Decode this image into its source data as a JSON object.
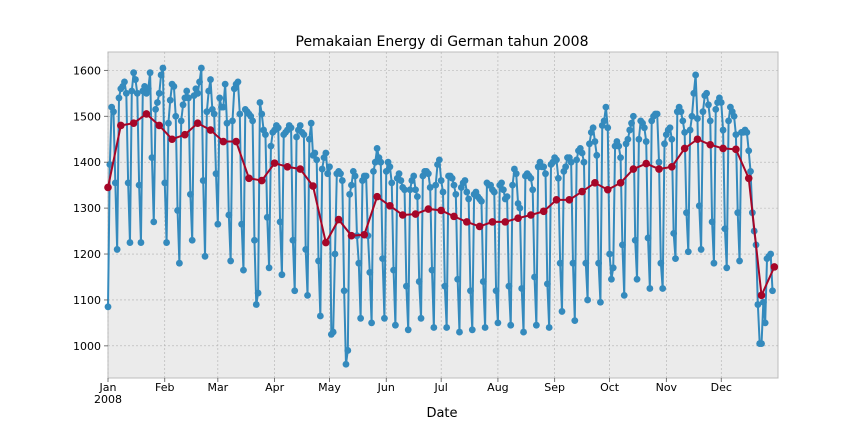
{
  "chart_data": {
    "type": "line",
    "title": "Pemakaian Energy di German tahun 2008",
    "xlabel": "Date",
    "ylabel": "",
    "ylim": [
      930,
      1640
    ],
    "xlim_days": [
      0,
      366
    ],
    "yticks": [
      1000,
      1100,
      1200,
      1300,
      1400,
      1500,
      1600
    ],
    "xticks": [
      {
        "day": 0,
        "label": "Jan",
        "sublabel": "2008"
      },
      {
        "day": 31,
        "label": "Feb"
      },
      {
        "day": 60,
        "label": "Mar"
      },
      {
        "day": 91,
        "label": "Apr"
      },
      {
        "day": 121,
        "label": "May"
      },
      {
        "day": 152,
        "label": "Jun"
      },
      {
        "day": 182,
        "label": "Jul"
      },
      {
        "day": 213,
        "label": "Aug"
      },
      {
        "day": 244,
        "label": "Sep"
      },
      {
        "day": 274,
        "label": "Oct"
      },
      {
        "day": 305,
        "label": "Nov"
      },
      {
        "day": 335,
        "label": "Dec"
      }
    ],
    "grid": true,
    "background": "#ebebeb",
    "series": [
      {
        "name": "",
        "color": "#348abd",
        "start_date": "2008-01-01",
        "values": [
          1085,
          1395,
          1520,
          1510,
          1355,
          1210,
          1540,
          1560,
          1565,
          1575,
          1550,
          1355,
          1225,
          1555,
          1595,
          1580,
          1550,
          1350,
          1225,
          1555,
          1565,
          1550,
          1560,
          1595,
          1410,
          1270,
          1515,
          1530,
          1550,
          1590,
          1605,
          1355,
          1225,
          1485,
          1535,
          1570,
          1565,
          1500,
          1295,
          1180,
          1490,
          1525,
          1540,
          1555,
          1540,
          1330,
          1230,
          1545,
          1560,
          1550,
          1575,
          1605,
          1360,
          1195,
          1510,
          1555,
          1580,
          1515,
          1505,
          1375,
          1265,
          1540,
          1520,
          1520,
          1570,
          1485,
          1285,
          1185,
          1490,
          1560,
          1570,
          1575,
          1505,
          1265,
          1165,
          1515,
          1510,
          1505,
          1500,
          1490,
          1230,
          1090,
          1115,
          1530,
          1505,
          1470,
          1460,
          1280,
          1170,
          1435,
          1465,
          1470,
          1480,
          1475,
          1270,
          1155,
          1460,
          1465,
          1470,
          1480,
          1475,
          1230,
          1120,
          1455,
          1470,
          1480,
          1465,
          1460,
          1210,
          1110,
          1450,
          1485,
          1415,
          1420,
          1405,
          1185,
          1065,
          1385,
          1410,
          1420,
          1375,
          1390,
          1025,
          1030,
          1200,
          1375,
          1380,
          1375,
          1360,
          1120,
          960,
          990,
          1330,
          1350,
          1380,
          1370,
          1240,
          1180,
          1060,
          1360,
          1370,
          1370,
          1240,
          1160,
          1050,
          1380,
          1400,
          1430,
          1410,
          1400,
          1190,
          1060,
          1380,
          1400,
          1390,
          1355,
          1165,
          1045,
          1365,
          1375,
          1360,
          1345,
          1340,
          1130,
          1035,
          1340,
          1360,
          1370,
          1340,
          1325,
          1140,
          1060,
          1370,
          1380,
          1380,
          1375,
          1345,
          1165,
          1040,
          1350,
          1395,
          1405,
          1360,
          1335,
          1130,
          1040,
          1370,
          1370,
          1365,
          1350,
          1330,
          1145,
          1030,
          1345,
          1355,
          1360,
          1335,
          1320,
          1120,
          1035,
          1330,
          1335,
          1325,
          1320,
          1315,
          1140,
          1040,
          1355,
          1350,
          1350,
          1340,
          1335,
          1120,
          1050,
          1350,
          1355,
          1340,
          1320,
          1325,
          1130,
          1045,
          1350,
          1385,
          1375,
          1310,
          1300,
          1125,
          1030,
          1370,
          1375,
          1370,
          1365,
          1340,
          1150,
          1045,
          1390,
          1400,
          1390,
          1390,
          1375,
          1135,
          1040,
          1395,
          1400,
          1410,
          1405,
          1365,
          1180,
          1075,
          1380,
          1390,
          1410,
          1410,
          1400,
          1180,
          1055,
          1405,
          1425,
          1430,
          1420,
          1400,
          1180,
          1100,
          1440,
          1465,
          1475,
          1445,
          1415,
          1180,
          1095,
          1480,
          1490,
          1520,
          1475,
          1200,
          1145,
          1170,
          1435,
          1445,
          1435,
          1410,
          1220,
          1110,
          1440,
          1450,
          1470,
          1485,
          1500,
          1230,
          1145,
          1450,
          1490,
          1485,
          1475,
          1445,
          1235,
          1125,
          1490,
          1500,
          1505,
          1505,
          1400,
          1180,
          1125,
          1440,
          1460,
          1470,
          1475,
          1450,
          1245,
          1190,
          1510,
          1520,
          1510,
          1490,
          1465,
          1290,
          1205,
          1470,
          1500,
          1550,
          1590,
          1495,
          1305,
          1210,
          1510,
          1545,
          1550,
          1525,
          1490,
          1270,
          1180,
          1515,
          1530,
          1540,
          1530,
          1470,
          1255,
          1170,
          1490,
          1520,
          1510,
          1500,
          1460,
          1290,
          1185,
          1465,
          1465,
          1470,
          1465,
          1425,
          1380,
          1290,
          1250,
          1220,
          1090,
          1005,
          1005,
          1095,
          1050,
          1190,
          1195,
          1200,
          1120
        ]
      },
      {
        "name": "",
        "color": "#a60628",
        "week_start_day": 0,
        "week_step": 7,
        "values": [
          1345,
          1480,
          1485,
          1505,
          1480,
          1450,
          1460,
          1485,
          1470,
          1445,
          1445,
          1365,
          1360,
          1398,
          1390,
          1385,
          1348,
          1225,
          1275,
          1240,
          1242,
          1325,
          1305,
          1285,
          1287,
          1298,
          1295,
          1282,
          1270,
          1260,
          1270,
          1270,
          1278,
          1285,
          1293,
          1318,
          1318,
          1336,
          1355,
          1340,
          1355,
          1385,
          1397,
          1385,
          1390,
          1430,
          1450,
          1438,
          1430,
          1428,
          1365,
          1110,
          1172
        ]
      }
    ]
  }
}
